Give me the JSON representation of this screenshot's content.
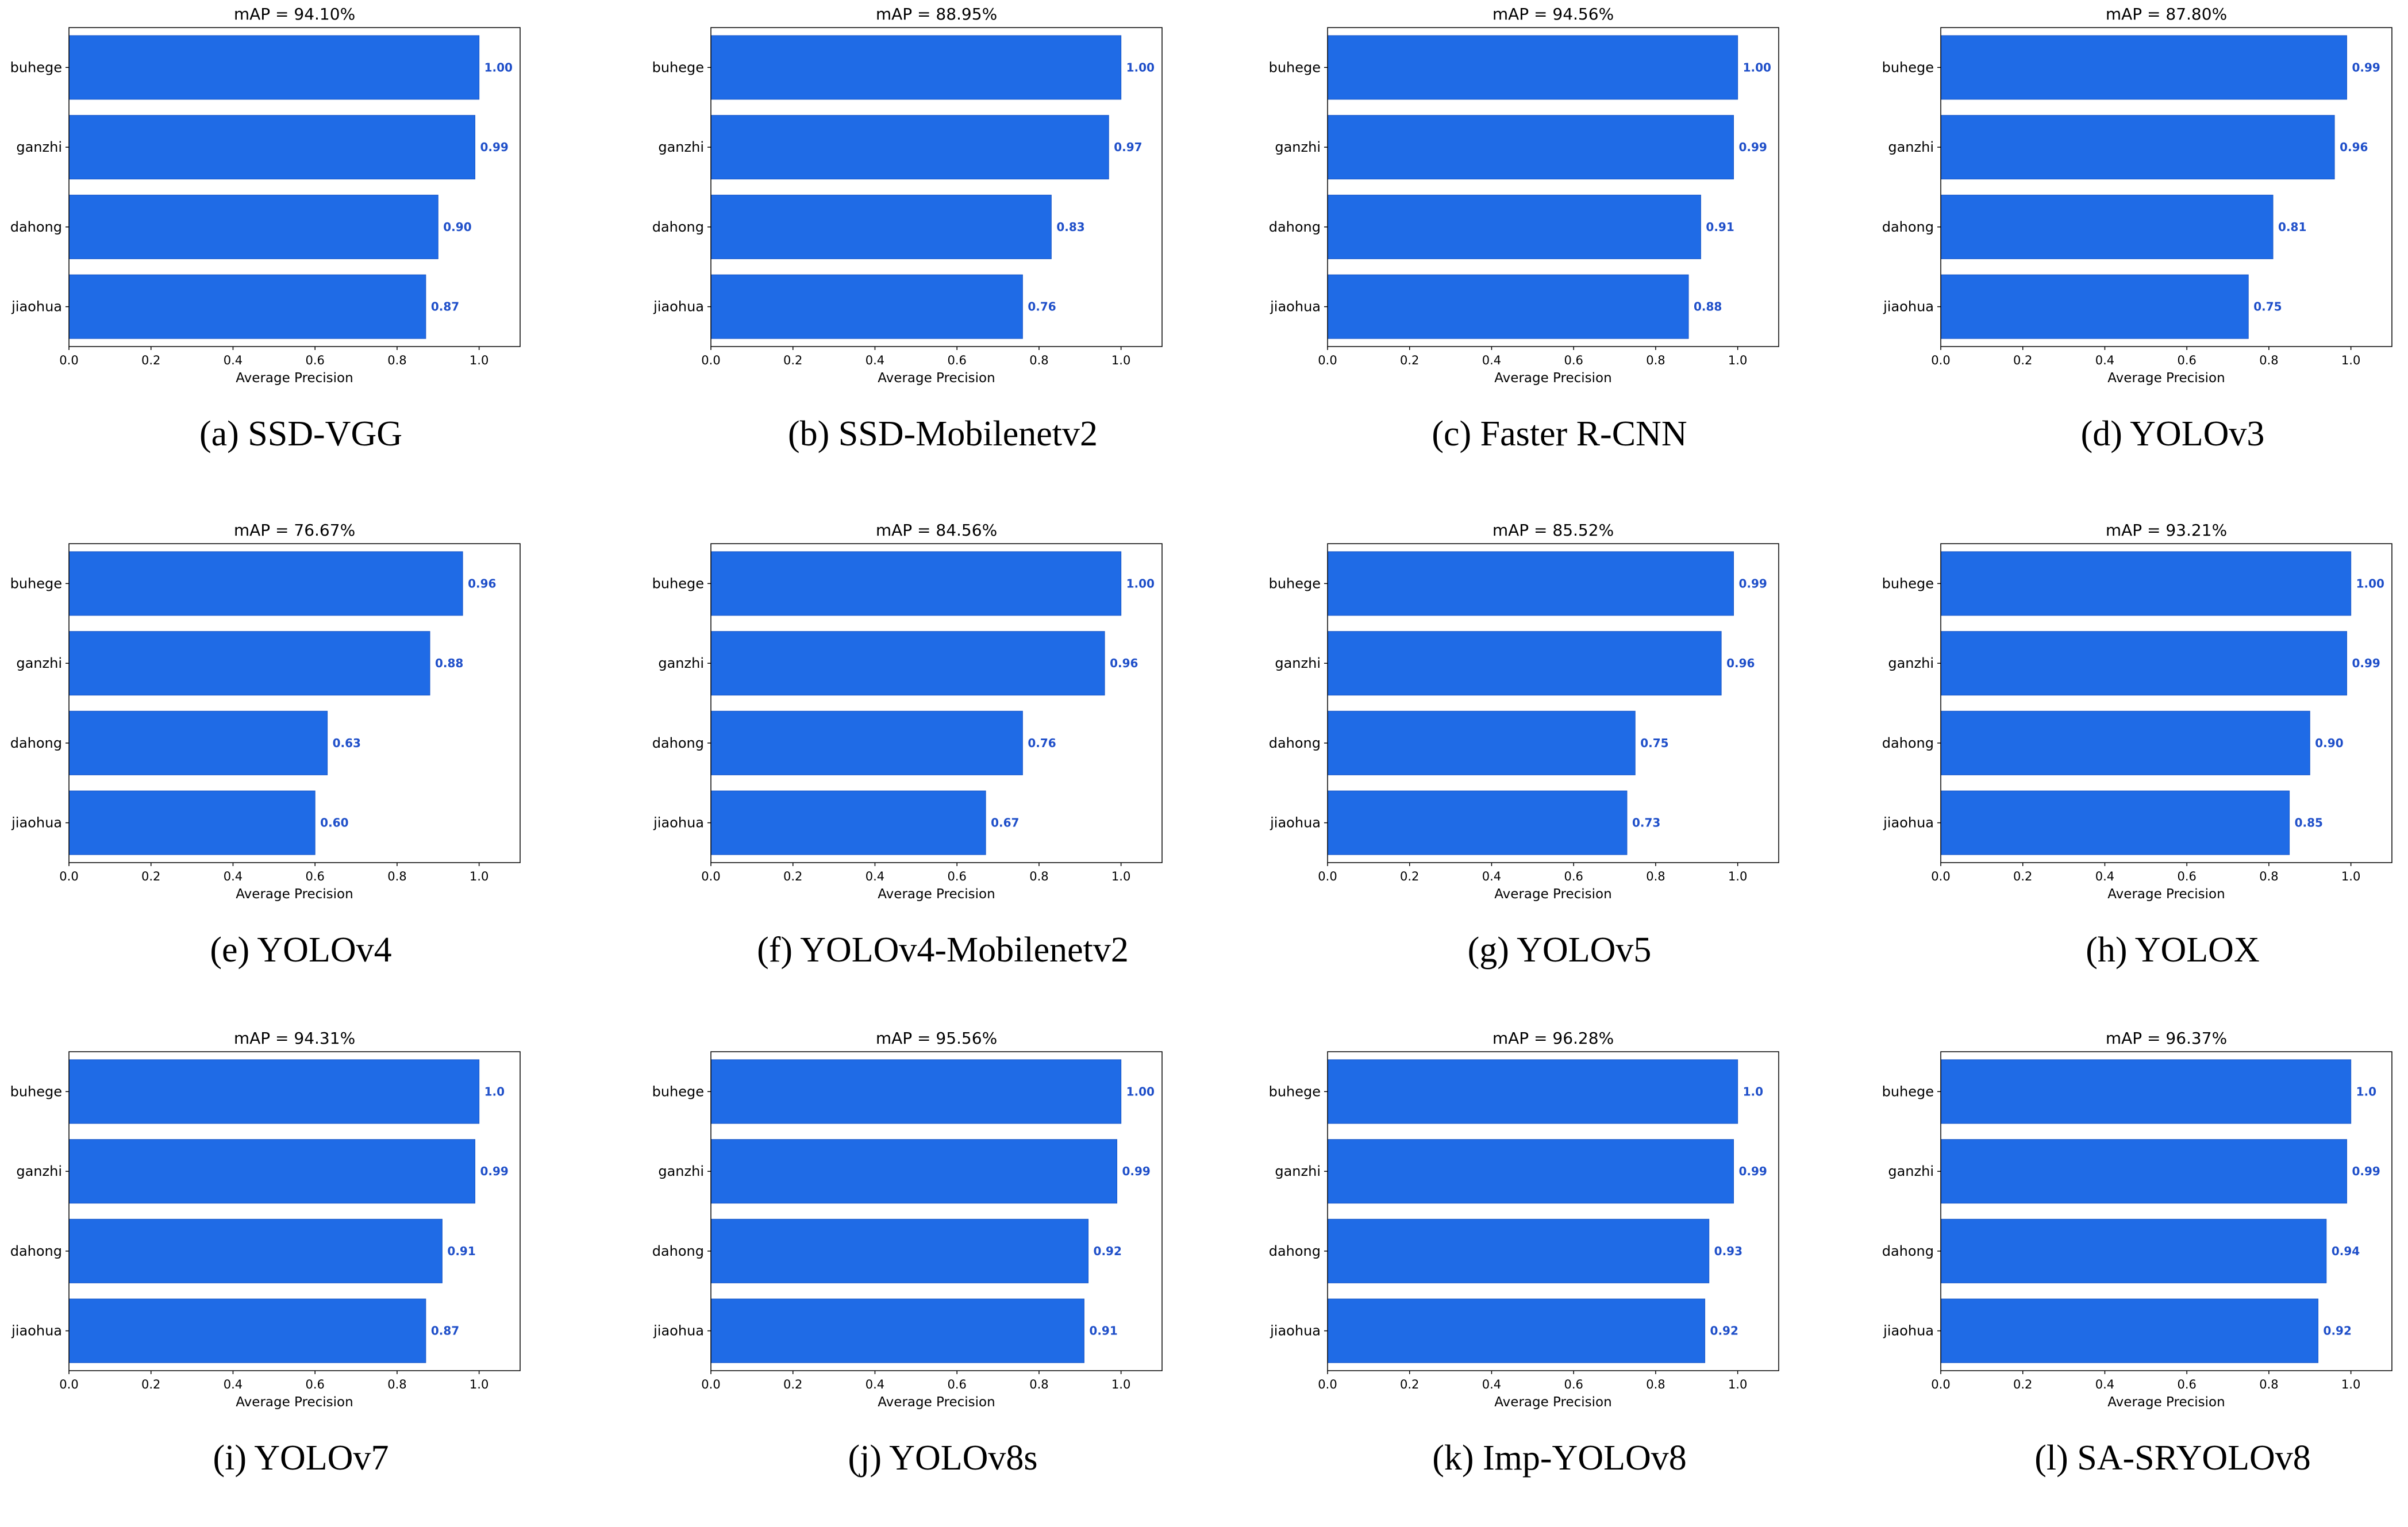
{
  "colors": {
    "bar": "#1f6be6",
    "bar_edge": "#1a56c4",
    "value_label": "#1f4fc9",
    "axes": "#000000"
  },
  "chart_data": [
    {
      "type": "bar",
      "orientation": "horizontal",
      "title": "mAP = 94.10%",
      "caption": "(a) SSD-VGG",
      "categories": [
        "buhege",
        "ganzhi",
        "dahong",
        "jiaohua"
      ],
      "values": [
        1.0,
        0.99,
        0.9,
        0.87
      ],
      "value_labels": [
        "1.00",
        "0.99",
        "0.90",
        "0.87"
      ],
      "xlabel": "Average Precision",
      "xlim": [
        0,
        1.1
      ],
      "xticks": [
        "0.0",
        "0.2",
        "0.4",
        "0.6",
        "0.8",
        "1.0"
      ]
    },
    {
      "type": "bar",
      "orientation": "horizontal",
      "title": "mAP = 88.95%",
      "caption": "(b) SSD-Mobilenetv2",
      "categories": [
        "buhege",
        "ganzhi",
        "dahong",
        "jiaohua"
      ],
      "values": [
        1.0,
        0.97,
        0.83,
        0.76
      ],
      "value_labels": [
        "1.00",
        "0.97",
        "0.83",
        "0.76"
      ],
      "xlabel": "Average Precision",
      "xlim": [
        0,
        1.1
      ],
      "xticks": [
        "0.0",
        "0.2",
        "0.4",
        "0.6",
        "0.8",
        "1.0"
      ]
    },
    {
      "type": "bar",
      "orientation": "horizontal",
      "title": "mAP = 94.56%",
      "caption": "(c) Faster R-CNN",
      "categories": [
        "buhege",
        "ganzhi",
        "dahong",
        "jiaohua"
      ],
      "values": [
        1.0,
        0.99,
        0.91,
        0.88
      ],
      "value_labels": [
        "1.00",
        "0.99",
        "0.91",
        "0.88"
      ],
      "xlabel": "Average Precision",
      "xlim": [
        0,
        1.1
      ],
      "xticks": [
        "0.0",
        "0.2",
        "0.4",
        "0.6",
        "0.8",
        "1.0"
      ]
    },
    {
      "type": "bar",
      "orientation": "horizontal",
      "title": "mAP = 87.80%",
      "caption": "(d) YOLOv3",
      "categories": [
        "buhege",
        "ganzhi",
        "dahong",
        "jiaohua"
      ],
      "values": [
        0.99,
        0.96,
        0.81,
        0.75
      ],
      "value_labels": [
        "0.99",
        "0.96",
        "0.81",
        "0.75"
      ],
      "xlabel": "Average Precision",
      "xlim": [
        0,
        1.1
      ],
      "xticks": [
        "0.0",
        "0.2",
        "0.4",
        "0.6",
        "0.8",
        "1.0"
      ]
    },
    {
      "type": "bar",
      "orientation": "horizontal",
      "title": "mAP = 76.67%",
      "caption": "(e) YOLOv4",
      "categories": [
        "buhege",
        "ganzhi",
        "dahong",
        "jiaohua"
      ],
      "values": [
        0.96,
        0.88,
        0.63,
        0.6
      ],
      "value_labels": [
        "0.96",
        "0.88",
        "0.63",
        "0.60"
      ],
      "xlabel": "Average Precision",
      "xlim": [
        0,
        1.1
      ],
      "xticks": [
        "0.0",
        "0.2",
        "0.4",
        "0.6",
        "0.8",
        "1.0"
      ]
    },
    {
      "type": "bar",
      "orientation": "horizontal",
      "title": "mAP = 84.56%",
      "caption": "(f) YOLOv4-Mobilenetv2",
      "categories": [
        "buhege",
        "ganzhi",
        "dahong",
        "jiaohua"
      ],
      "values": [
        1.0,
        0.96,
        0.76,
        0.67
      ],
      "value_labels": [
        "1.00",
        "0.96",
        "0.76",
        "0.67"
      ],
      "xlabel": "Average Precision",
      "xlim": [
        0,
        1.1
      ],
      "xticks": [
        "0.0",
        "0.2",
        "0.4",
        "0.6",
        "0.8",
        "1.0"
      ]
    },
    {
      "type": "bar",
      "orientation": "horizontal",
      "title": "mAP = 85.52%",
      "caption": "(g) YOLOv5",
      "categories": [
        "buhege",
        "ganzhi",
        "dahong",
        "jiaohua"
      ],
      "values": [
        0.99,
        0.96,
        0.75,
        0.73
      ],
      "value_labels": [
        "0.99",
        "0.96",
        "0.75",
        "0.73"
      ],
      "xlabel": "Average Precision",
      "xlim": [
        0,
        1.1
      ],
      "xticks": [
        "0.0",
        "0.2",
        "0.4",
        "0.6",
        "0.8",
        "1.0"
      ]
    },
    {
      "type": "bar",
      "orientation": "horizontal",
      "title": "mAP = 93.21%",
      "caption": "(h) YOLOX",
      "categories": [
        "buhege",
        "ganzhi",
        "dahong",
        "jiaohua"
      ],
      "values": [
        1.0,
        0.99,
        0.9,
        0.85
      ],
      "value_labels": [
        "1.00",
        "0.99",
        "0.90",
        "0.85"
      ],
      "xlabel": "Average Precision",
      "xlim": [
        0,
        1.1
      ],
      "xticks": [
        "0.0",
        "0.2",
        "0.4",
        "0.6",
        "0.8",
        "1.0"
      ]
    },
    {
      "type": "bar",
      "orientation": "horizontal",
      "title": "mAP = 94.31%",
      "caption": "(i) YOLOv7",
      "categories": [
        "buhege",
        "ganzhi",
        "dahong",
        "jiaohua"
      ],
      "values": [
        1.0,
        0.99,
        0.91,
        0.87
      ],
      "value_labels": [
        "1.0",
        "0.99",
        "0.91",
        "0.87"
      ],
      "xlabel": "Average Precision",
      "xlim": [
        0,
        1.1
      ],
      "xticks": [
        "0.0",
        "0.2",
        "0.4",
        "0.6",
        "0.8",
        "1.0"
      ]
    },
    {
      "type": "bar",
      "orientation": "horizontal",
      "title": "mAP = 95.56%",
      "caption": "(j) YOLOv8s",
      "categories": [
        "buhege",
        "ganzhi",
        "dahong",
        "jiaohua"
      ],
      "values": [
        1.0,
        0.99,
        0.92,
        0.91
      ],
      "value_labels": [
        "1.00",
        "0.99",
        "0.92",
        "0.91"
      ],
      "xlabel": "Average Precision",
      "xlim": [
        0,
        1.1
      ],
      "xticks": [
        "0.0",
        "0.2",
        "0.4",
        "0.6",
        "0.8",
        "1.0"
      ]
    },
    {
      "type": "bar",
      "orientation": "horizontal",
      "title": "mAP = 96.28%",
      "caption": "(k) Imp-YOLOv8",
      "categories": [
        "buhege",
        "ganzhi",
        "dahong",
        "jiaohua"
      ],
      "values": [
        1.0,
        0.99,
        0.93,
        0.92
      ],
      "value_labels": [
        "1.0",
        "0.99",
        "0.93",
        "0.92"
      ],
      "xlabel": "Average Precision",
      "xlim": [
        0,
        1.1
      ],
      "xticks": [
        "0.0",
        "0.2",
        "0.4",
        "0.6",
        "0.8",
        "1.0"
      ]
    },
    {
      "type": "bar",
      "orientation": "horizontal",
      "title": "mAP = 96.37%",
      "caption": "(l) SA-SRYOLOv8",
      "categories": [
        "buhege",
        "ganzhi",
        "dahong",
        "jiaohua"
      ],
      "values": [
        1.0,
        0.99,
        0.94,
        0.92
      ],
      "value_labels": [
        "1.0",
        "0.99",
        "0.94",
        "0.92"
      ],
      "xlabel": "Average Precision",
      "xlim": [
        0,
        1.1
      ],
      "xticks": [
        "0.0",
        "0.2",
        "0.4",
        "0.6",
        "0.8",
        "1.0"
      ]
    }
  ]
}
